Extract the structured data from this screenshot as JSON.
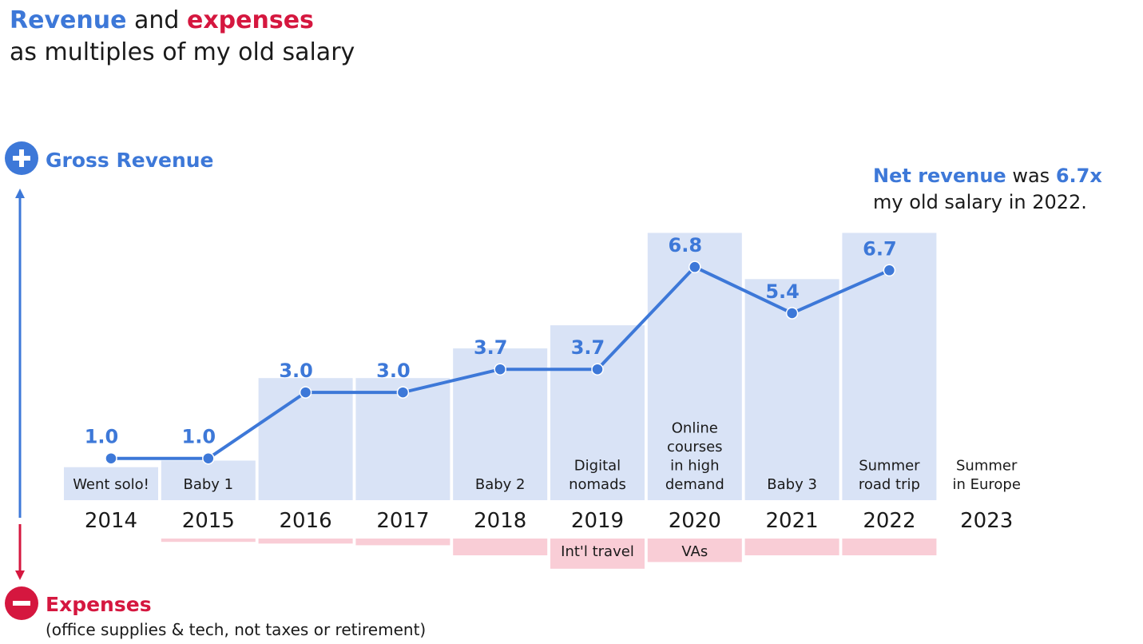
{
  "title": {
    "revenue_word": "Revenue",
    "and_word": "and",
    "expenses_word": "expenses",
    "line2": "as multiples of my old salary"
  },
  "axis": {
    "top_label": "Gross Revenue",
    "top_symbol": "+",
    "bottom_label": "Expenses",
    "bottom_symbol": "−",
    "bottom_sublabel": "(office supplies & tech, not taxes or retirement)"
  },
  "callout": {
    "part1_bold": "Net revenue",
    "part1_mid": "was",
    "part1_value": "6.7x",
    "line2": "my old salary in 2022."
  },
  "colors": {
    "revenue": "#3d78d8",
    "expenses": "#d5173f",
    "revenue_bar": "#d9e3f6",
    "expense_bar": "#f9cdd6",
    "text": "#1a1a1a"
  },
  "chart_data": {
    "type": "bar",
    "categories": [
      "2014",
      "2015",
      "2016",
      "2017",
      "2018",
      "2019",
      "2020",
      "2021",
      "2022",
      "2023"
    ],
    "series": [
      {
        "values": [
          1.0,
          1.2,
          3.7,
          3.7,
          4.6,
          5.3,
          8.1,
          6.7,
          8.1,
          null
        ]
      },
      {
        "values": [
          1.0,
          1.0,
          3.0,
          3.0,
          3.7,
          3.7,
          6.8,
          5.4,
          6.7,
          null
        ]
      },
      {
        "values": [
          0.0,
          0.1,
          0.15,
          0.2,
          0.5,
          0.9,
          0.7,
          0.5,
          0.5,
          null
        ]
      }
    ],
    "value_labels": [
      "1.0",
      "1.0",
      "3.0",
      "3.0",
      "3.7",
      "3.7",
      "6.8",
      "5.4",
      "6.7",
      ""
    ],
    "year_notes": [
      [
        "Went solo!"
      ],
      [
        "Baby 1"
      ],
      [],
      [],
      [
        "Baby 2"
      ],
      [
        "Digital",
        "nomads"
      ],
      [
        "Online",
        "courses",
        "in high",
        "demand"
      ],
      [
        "Baby 3"
      ],
      [
        "Summer",
        "road trip"
      ],
      [
        "Summer",
        "in Europe"
      ]
    ],
    "expense_notes": [
      "",
      "",
      "",
      "",
      "",
      "Int'l travel",
      "VAs",
      "",
      "",
      ""
    ],
    "ylim": [
      0,
      8.5
    ],
    "grid": false,
    "legend": "none"
  }
}
